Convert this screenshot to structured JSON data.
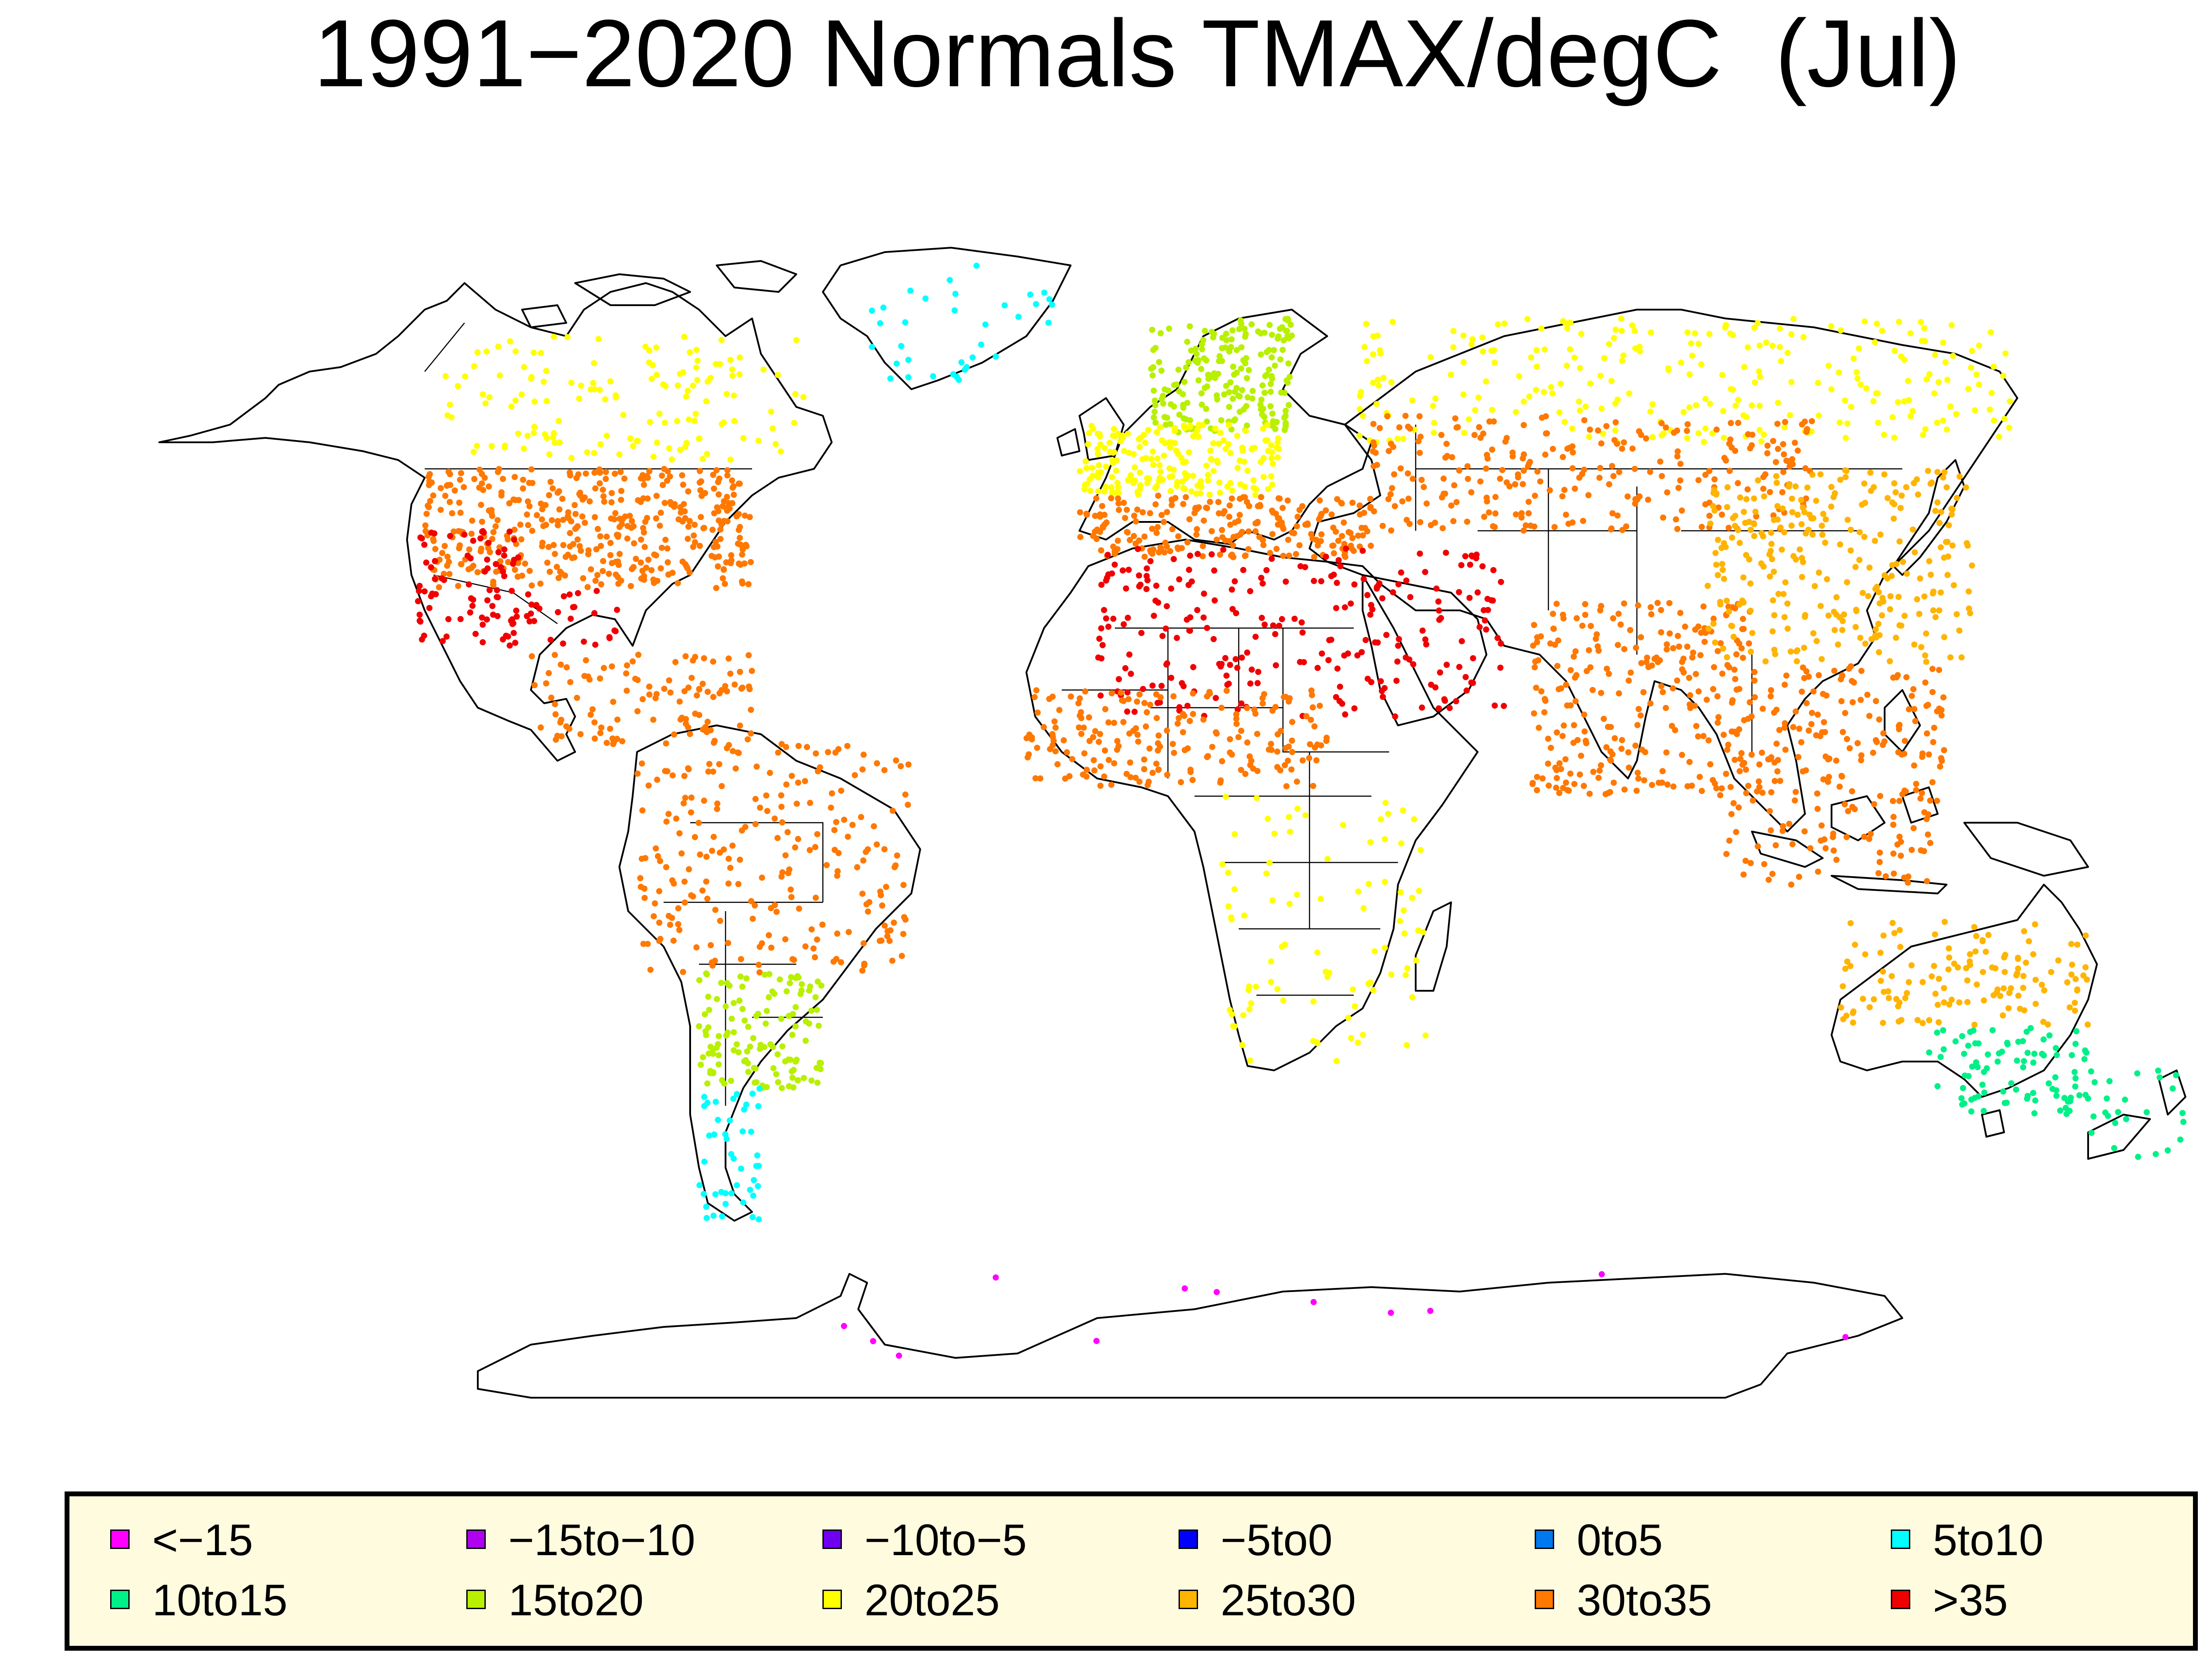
{
  "title": "1991−2020 Normals TMAX/degC  (Jul)",
  "legend": {
    "items": [
      {
        "label": "<−15",
        "color": "#ff00ff"
      },
      {
        "label": "−15to−10",
        "color": "#b000f0"
      },
      {
        "label": "−10to−5",
        "color": "#7000f0"
      },
      {
        "label": "−5to0",
        "color": "#0000ff"
      },
      {
        "label": "0to5",
        "color": "#0078f0"
      },
      {
        "label": "5to10",
        "color": "#00ffff"
      },
      {
        "label": "10to15",
        "color": "#00f088"
      },
      {
        "label": "15to20",
        "color": "#b8f000"
      },
      {
        "label": "20to25",
        "color": "#ffff00"
      },
      {
        "label": "25to30",
        "color": "#ffb400"
      },
      {
        "label": "30to35",
        "color": "#ff7800"
      },
      {
        "label": ">35",
        "color": "#f00000"
      }
    ]
  },
  "map": {
    "projection": "Robinson (world)",
    "background": "#ffffff",
    "outline_color": "#000000",
    "regions": [
      {
        "region": "Canada / Alaska",
        "category": "20to25"
      },
      {
        "region": "United States",
        "category": "30to35"
      },
      {
        "region": "US Southwest / Mexico",
        "category": ">35"
      },
      {
        "region": "Central America / Caribbean",
        "category": "30to35"
      },
      {
        "region": "Northern South America",
        "category": "30to35"
      },
      {
        "region": "Southern South America",
        "category": "15to20"
      },
      {
        "region": "Patagonia",
        "category": "5to10"
      },
      {
        "region": "Greenland coast",
        "category": "5to10"
      },
      {
        "region": "Scandinavia",
        "category": "15to20"
      },
      {
        "region": "Western Europe",
        "category": "20to25"
      },
      {
        "region": "Southern Europe / Turkey",
        "category": "30to35"
      },
      {
        "region": "Sahara / Arabia",
        "category": ">35"
      },
      {
        "region": "Sahel",
        "category": "30to35"
      },
      {
        "region": "Southern Africa",
        "category": "20to25"
      },
      {
        "region": "Russia",
        "category": "20to25"
      },
      {
        "region": "Central Asia",
        "category": "30to35"
      },
      {
        "region": "India",
        "category": "30to35"
      },
      {
        "region": "China / Japan",
        "category": "25to30"
      },
      {
        "region": "Southeast Asia",
        "category": "30to35"
      },
      {
        "region": "Northern Australia",
        "category": "25to30"
      },
      {
        "region": "Southern Australia",
        "category": "10to15"
      },
      {
        "region": "New Zealand",
        "category": "10to15"
      },
      {
        "region": "Antarctica",
        "category": "<−15"
      }
    ]
  }
}
